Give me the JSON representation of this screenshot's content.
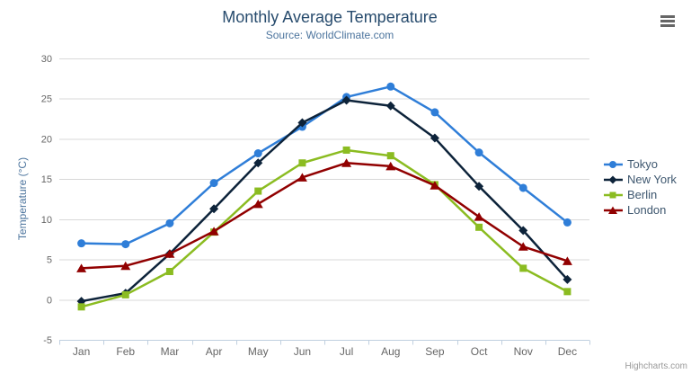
{
  "chart_data": {
    "type": "line",
    "title": "Monthly Average Temperature",
    "subtitle": "Source: WorldClimate.com",
    "categories": [
      "Jan",
      "Feb",
      "Mar",
      "Apr",
      "May",
      "Jun",
      "Jul",
      "Aug",
      "Sep",
      "Oct",
      "Nov",
      "Dec"
    ],
    "series": [
      {
        "name": "Tokyo",
        "color": "#2f7ed8",
        "marker": "circle",
        "values": [
          7.0,
          6.9,
          9.5,
          14.5,
          18.2,
          21.5,
          25.2,
          26.5,
          23.3,
          18.3,
          13.9,
          9.6
        ]
      },
      {
        "name": "New York",
        "color": "#0d233a",
        "marker": "diamond",
        "values": [
          -0.2,
          0.8,
          5.7,
          11.3,
          17.0,
          22.0,
          24.8,
          24.1,
          20.1,
          14.1,
          8.6,
          2.5
        ]
      },
      {
        "name": "Berlin",
        "color": "#8bbc21",
        "marker": "square",
        "values": [
          -0.9,
          0.6,
          3.5,
          8.4,
          13.5,
          17.0,
          18.6,
          17.9,
          14.3,
          9.0,
          3.9,
          1.0
        ]
      },
      {
        "name": "London",
        "color": "#910000",
        "marker": "triangle",
        "values": [
          3.9,
          4.2,
          5.7,
          8.5,
          11.9,
          15.2,
          17.0,
          16.6,
          14.2,
          10.3,
          6.6,
          4.8
        ]
      }
    ],
    "xlabel": "",
    "ylabel": "Temperature (°C)",
    "ylim": [
      -5,
      30
    ],
    "yticks": [
      -5,
      0,
      5,
      10,
      15,
      20,
      25,
      30
    ],
    "grid": "horizontal",
    "legend_position": "right-middle"
  },
  "colors": {
    "title": "#274b6d",
    "subtitle": "#4d759e",
    "axis_label": "#666666",
    "axis_title": "#4d759e",
    "grid": "#d8d8d8",
    "axis_line": "#c0d0e0",
    "legend_text": "#3e576f",
    "credits": "#999999"
  },
  "footer": {
    "credits": "Highcharts.com"
  },
  "menu": {
    "icon": "hamburger-icon"
  }
}
